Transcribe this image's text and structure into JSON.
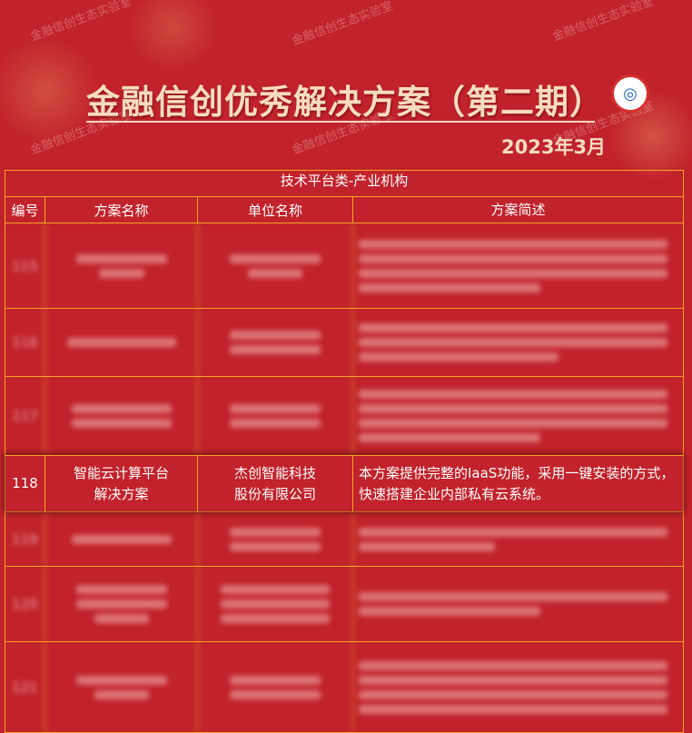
{
  "watermark": "金融信创生态实验室",
  "header": {
    "title": "金融信创优秀解决方案（第二期）",
    "date": "2023年3月",
    "logo_icon": "lab-logo-icon"
  },
  "table": {
    "caption": "技术平台类-产业机构",
    "columns": [
      "编号",
      "方案名称",
      "单位名称",
      "方案简述"
    ],
    "blurred_ids_before": [
      "115",
      "116",
      "117"
    ],
    "highlight": {
      "id": "118",
      "name": "智能云计算平台解决方案",
      "org": "杰创智能科技股份有限公司",
      "desc": "本方案提供完整的IaaS功能，采用一键安装的方式，快速搭建企业内部私有云系统。"
    },
    "blurred_ids_after": [
      "119",
      "120",
      "121"
    ]
  },
  "colors": {
    "background": "#c1222b",
    "border": "#f5a623",
    "title": "#f7dcc0"
  }
}
